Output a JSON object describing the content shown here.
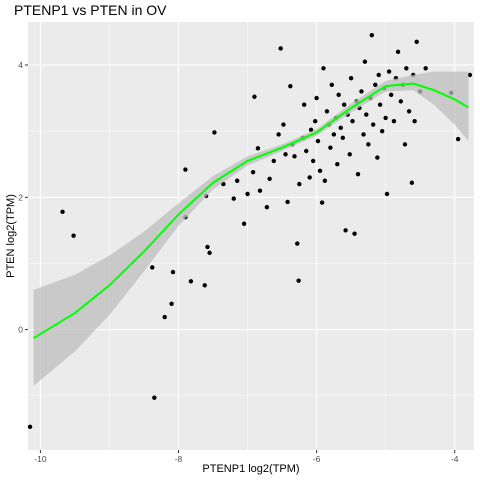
{
  "chart_data": {
    "type": "scatter",
    "title": "PTENP1 vs  PTEN in OV",
    "xlabel": "PTENP1 log2(TPM)",
    "ylabel": "PTEN log2(TPM)",
    "xlim": [
      -10.18,
      -3.72
    ],
    "ylim": [
      -1.82,
      4.65
    ],
    "xticks": [
      -10,
      -8,
      -6,
      -4
    ],
    "yticks": [
      0,
      2,
      4
    ],
    "grid": true,
    "colors": {
      "panel": "#ebebeb",
      "grid_major": "#ffffff",
      "points": "#000000",
      "smooth_line": "#00ff00",
      "confidence_band": "#bdbdbd"
    },
    "smooth": {
      "x": [
        -10.1,
        -9.5,
        -9.0,
        -8.5,
        -8.0,
        -7.5,
        -7.0,
        -6.5,
        -6.0,
        -5.5,
        -5.0,
        -4.6,
        -4.3,
        -4.0,
        -3.8
      ],
      "y": [
        -0.13,
        0.25,
        0.67,
        1.18,
        1.74,
        2.22,
        2.55,
        2.75,
        2.98,
        3.35,
        3.68,
        3.72,
        3.62,
        3.48,
        3.36
      ],
      "lower": [
        -0.85,
        -0.33,
        0.22,
        0.88,
        1.57,
        2.12,
        2.48,
        2.7,
        2.93,
        3.28,
        3.6,
        3.62,
        3.4,
        3.1,
        2.85
      ],
      "upper": [
        0.6,
        0.83,
        1.12,
        1.48,
        1.91,
        2.32,
        2.62,
        2.8,
        3.03,
        3.42,
        3.76,
        3.85,
        3.9,
        3.9,
        3.9
      ]
    },
    "points": [
      [
        -10.15,
        -1.47
      ],
      [
        -9.68,
        1.78
      ],
      [
        -9.52,
        1.42
      ],
      [
        -8.38,
        0.94
      ],
      [
        -8.35,
        -1.03
      ],
      [
        -8.2,
        0.19
      ],
      [
        -8.1,
        0.39
      ],
      [
        -8.08,
        0.87
      ],
      [
        -7.9,
        1.7
      ],
      [
        -7.9,
        2.42
      ],
      [
        -7.82,
        0.73
      ],
      [
        -7.62,
        0.67
      ],
      [
        -7.6,
        2.02
      ],
      [
        -7.58,
        1.25
      ],
      [
        -7.55,
        1.16
      ],
      [
        -7.48,
        2.98
      ],
      [
        -7.35,
        2.2
      ],
      [
        -7.2,
        1.98
      ],
      [
        -7.15,
        2.25
      ],
      [
        -7.05,
        1.6
      ],
      [
        -7.0,
        2.05
      ],
      [
        -6.92,
        2.38
      ],
      [
        -6.9,
        3.52
      ],
      [
        -6.85,
        2.74
      ],
      [
        -6.82,
        2.1
      ],
      [
        -6.72,
        1.85
      ],
      [
        -6.68,
        2.28
      ],
      [
        -6.62,
        2.55
      ],
      [
        -6.55,
        2.95
      ],
      [
        -6.52,
        4.25
      ],
      [
        -6.48,
        3.1
      ],
      [
        -6.45,
        2.65
      ],
      [
        -6.42,
        1.93
      ],
      [
        -6.38,
        3.68
      ],
      [
        -6.35,
        2.8
      ],
      [
        -6.32,
        2.62
      ],
      [
        -6.28,
        1.3
      ],
      [
        -6.26,
        0.74
      ],
      [
        -6.25,
        2.2
      ],
      [
        -6.2,
        2.9
      ],
      [
        -6.18,
        3.4
      ],
      [
        -6.15,
        2.7
      ],
      [
        -6.1,
        2.3
      ],
      [
        -6.08,
        3.02
      ],
      [
        -6.05,
        2.55
      ],
      [
        -6.02,
        3.15
      ],
      [
        -6.0,
        3.5
      ],
      [
        -5.98,
        2.85
      ],
      [
        -5.95,
        2.4
      ],
      [
        -5.92,
        1.92
      ],
      [
        -5.9,
        3.95
      ],
      [
        -5.88,
        2.25
      ],
      [
        -5.85,
        3.3
      ],
      [
        -5.82,
        3.1
      ],
      [
        -5.8,
        2.75
      ],
      [
        -5.78,
        3.7
      ],
      [
        -5.75,
        2.95
      ],
      [
        -5.72,
        3.2
      ],
      [
        -5.7,
        2.5
      ],
      [
        -5.68,
        3.55
      ],
      [
        -5.65,
        3.05
      ],
      [
        -5.62,
        2.9
      ],
      [
        -5.6,
        3.4
      ],
      [
        -5.58,
        1.5
      ],
      [
        -5.55,
        3.25
      ],
      [
        -5.52,
        2.65
      ],
      [
        -5.5,
        3.8
      ],
      [
        -5.48,
        3.15
      ],
      [
        -5.45,
        1.45
      ],
      [
        -5.42,
        3.45
      ],
      [
        -5.4,
        2.35
      ],
      [
        -5.38,
        3.35
      ],
      [
        -5.35,
        3.6
      ],
      [
        -5.32,
        2.95
      ],
      [
        -5.3,
        4.05
      ],
      [
        -5.28,
        3.25
      ],
      [
        -5.25,
        2.8
      ],
      [
        -5.22,
        3.5
      ],
      [
        -5.2,
        4.45
      ],
      [
        -5.18,
        3.1
      ],
      [
        -5.15,
        3.7
      ],
      [
        -5.12,
        2.6
      ],
      [
        -5.1,
        3.85
      ],
      [
        -5.08,
        3.4
      ],
      [
        -5.05,
        3.0
      ],
      [
        -5.02,
        3.65
      ],
      [
        -5.0,
        3.2
      ],
      [
        -4.98,
        2.05
      ],
      [
        -4.95,
        3.9
      ],
      [
        -4.92,
        3.55
      ],
      [
        -4.88,
        3.15
      ],
      [
        -4.85,
        3.8
      ],
      [
        -4.82,
        4.2
      ],
      [
        -4.78,
        3.45
      ],
      [
        -4.75,
        3.7
      ],
      [
        -4.72,
        2.8
      ],
      [
        -4.7,
        3.95
      ],
      [
        -4.66,
        3.3
      ],
      [
        -4.62,
        2.22
      ],
      [
        -4.6,
        3.85
      ],
      [
        -4.58,
        3.15
      ],
      [
        -4.55,
        4.35
      ],
      [
        -4.5,
        3.6
      ],
      [
        -4.42,
        3.95
      ],
      [
        -4.05,
        3.58
      ],
      [
        -3.95,
        2.88
      ],
      [
        -3.78,
        3.85
      ]
    ]
  }
}
